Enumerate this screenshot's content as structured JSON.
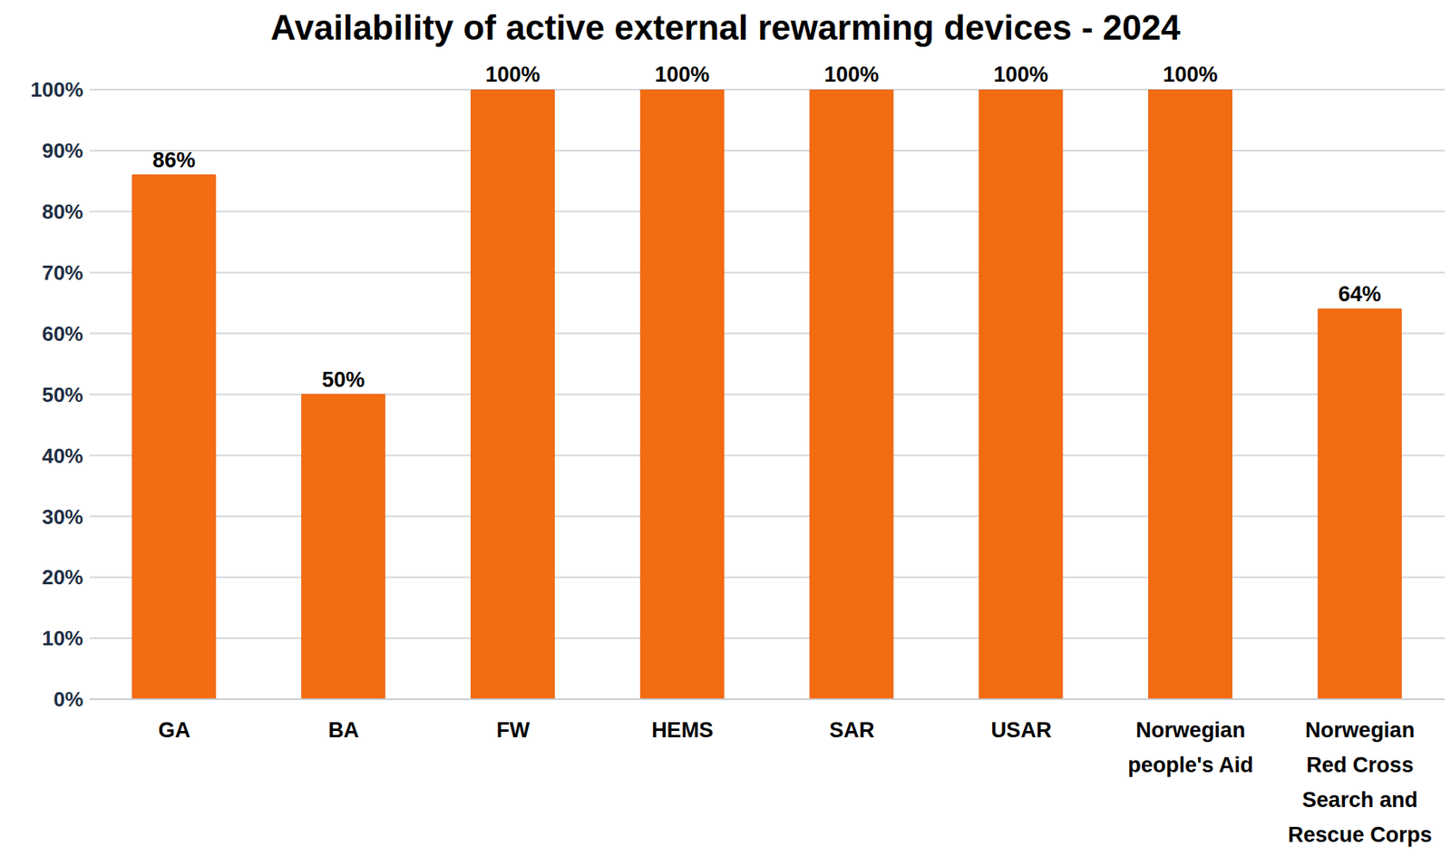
{
  "chart_data": {
    "type": "bar",
    "title": "Availability of active external rewarming devices - 2024",
    "categories": [
      "GA",
      "BA",
      "FW",
      "HEMS",
      "SAR",
      "USAR",
      "Norwegian people's Aid",
      "Norwegian Red Cross Search and Rescue Corps"
    ],
    "values": [
      86,
      50,
      100,
      100,
      100,
      100,
      100,
      64
    ],
    "value_labels": [
      "86%",
      "50%",
      "100%",
      "100%",
      "100%",
      "100%",
      "100%",
      "64%"
    ],
    "color": "#f36c12",
    "ylim": [
      0,
      100
    ],
    "yticks": [
      {
        "value": 0,
        "label": "0%"
      },
      {
        "value": 10,
        "label": "10%"
      },
      {
        "value": 20,
        "label": "20%"
      },
      {
        "value": 30,
        "label": "30%"
      },
      {
        "value": 40,
        "label": "40%"
      },
      {
        "value": 50,
        "label": "50%"
      },
      {
        "value": 60,
        "label": "60%"
      },
      {
        "value": 70,
        "label": "70%"
      },
      {
        "value": 80,
        "label": "80%"
      },
      {
        "value": 90,
        "label": "90%"
      },
      {
        "value": 100,
        "label": "100%"
      }
    ],
    "grid": true,
    "data_labels": true
  }
}
